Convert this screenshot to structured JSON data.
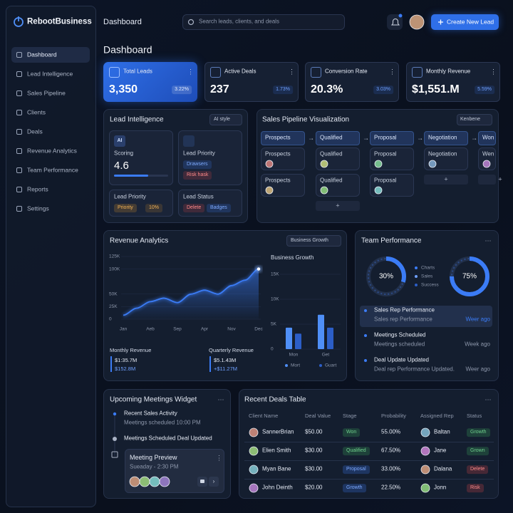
{
  "sidebar": {
    "brand": "RebootBusiness",
    "nav": [
      "Dashboard",
      "Lead Intelligence",
      "Sales Pipeline",
      "Clients",
      "Deals",
      "Revenue Analytics",
      "Team Performance",
      "Reports",
      "Settings"
    ]
  },
  "topbar": {
    "title": "Dashboard",
    "search_placeholder": "Search leads, clients, and deals",
    "button": "Create New Lead"
  },
  "page_title": "Dashboard",
  "kpis": [
    {
      "label": "Total Leads",
      "value": "3,350",
      "change": "3.22%"
    },
    {
      "label": "Active Deals",
      "value": "237",
      "change": "1.73%"
    },
    {
      "label": "Conversion Rate",
      "value": "20.3%",
      "change": "3.03%"
    },
    {
      "label": "Monthly Revenue",
      "value": "$1,551.M",
      "change": "5.59%"
    }
  ],
  "lead_intelligence": {
    "title": "Lead Intelligence",
    "dropdown": "AI style",
    "scoring": {
      "badge": "AI",
      "label": "Scoring",
      "value": 4.6
    },
    "priority_card": {
      "title": "Lead Priority",
      "tags": [
        "Drawsers",
        "Risk hask"
      ]
    },
    "priority": {
      "title": "Lead Priority",
      "tags": [
        "Priority",
        "10%"
      ]
    },
    "status": {
      "title": "Lead Status",
      "tags": [
        "Delete",
        "Badges"
      ]
    }
  },
  "pipeline": {
    "title": "Sales Pipeline Visualization",
    "dropdown": "Kenbene",
    "stages": [
      "Prospects",
      "Qualified",
      "Proposal",
      "Negotiation",
      "Won"
    ],
    "cards": [
      [
        "Prospects",
        "Prospects"
      ],
      [
        "Qualified",
        "Qualified"
      ],
      [
        "Proposal",
        "Proposal"
      ],
      [
        "Negotiation"
      ],
      [
        "Wen"
      ]
    ]
  },
  "revenue": {
    "title": "Revenue Analytics",
    "dropdown": "Business Growth",
    "line": {
      "type": "line",
      "categories": [
        "Jan",
        null,
        "Aeb",
        null,
        "Sep",
        null,
        "Apr",
        null,
        "Nov",
        null,
        "Dec"
      ],
      "values": [
        8000,
        22000,
        35000,
        42000,
        33000,
        50000,
        58000,
        50000,
        67000,
        78000,
        100000
      ],
      "color": "#3b7cf6",
      "ylim": [
        0,
        125000
      ],
      "yticks": [
        {
          "value": 100000,
          "label": "100K"
        },
        {
          "value": 125000,
          "label": "125K"
        },
        {
          "value": 50000,
          "label": "50K"
        },
        {
          "value": 25000,
          "label": "25K"
        },
        0
      ]
    },
    "bars": {
      "type": "bar",
      "title": "Business Growth",
      "categories": [
        "Mon",
        "Get"
      ],
      "series": [
        {
          "name": "Mort",
          "color": "#4f8ff7",
          "values": [
            4300,
            6900
          ]
        },
        {
          "name": "Guart",
          "color": "#2c5ec7",
          "values": [
            3100,
            4300
          ]
        }
      ],
      "ylim": [
        0,
        15000
      ],
      "yticks": [
        {
          "value": 15000,
          "label": "15K"
        },
        {
          "value": 10000,
          "label": "10K"
        },
        {
          "value": 5000,
          "label": "5K"
        },
        0
      ]
    },
    "stats": [
      {
        "label": "Monthly Revenue",
        "value": "$1:35.7M",
        "sub": "$152.8M"
      },
      {
        "label": "Quarterly Revenue",
        "value": "$5.1.43M",
        "sub": "+$11.27M"
      }
    ]
  },
  "team": {
    "title": "Team Performance",
    "donuts": [
      {
        "value": 30,
        "label": "30%"
      },
      {
        "value": 75,
        "label": "75%"
      }
    ],
    "legend": [
      "Charts",
      "Sales",
      "Success"
    ],
    "activities": [
      {
        "title": "Sales Rep Performance",
        "detail": "Sales rep Performance",
        "time": "Weer ago"
      },
      {
        "title": "Meetings Scheduled",
        "detail": "Meetings scheduled",
        "time": "Week ago"
      },
      {
        "title": "Deal Update Updated",
        "detail": "Deal rep Performance Updated.",
        "time": "Weer ago"
      }
    ]
  },
  "meetings": {
    "title": "Upcoming Meetings Widget",
    "items": [
      {
        "title": "Recent Sales Activity",
        "detail": "Meetings scheduled 10:00 PM"
      },
      {
        "title": "Meetings Scheduled Deal Updated"
      }
    ],
    "preview": {
      "title": "Meeting Preview",
      "time": "Sueaday - 2:30 PM"
    }
  },
  "deals": {
    "title": "Recent Deals Table",
    "columns": [
      "Client Name",
      "Deal Value",
      "Stage",
      "Probability",
      "Assigned Rep",
      "Status"
    ],
    "rows": [
      [
        "SannerBrian",
        "$50.00",
        "Won",
        "55.00%",
        "Baltan",
        "Growth"
      ],
      [
        "Elien Smith",
        "$30.00",
        "Qualified",
        "67.50%",
        "Jane",
        "Grown"
      ],
      [
        "Myan Bane",
        "$30.00",
        "Proposal",
        "33.00%",
        "Dalana",
        "Delete"
      ],
      [
        "John Deinth",
        "$20.00",
        "Growth",
        "22.50%",
        "Jonn",
        "Risk"
      ]
    ]
  }
}
